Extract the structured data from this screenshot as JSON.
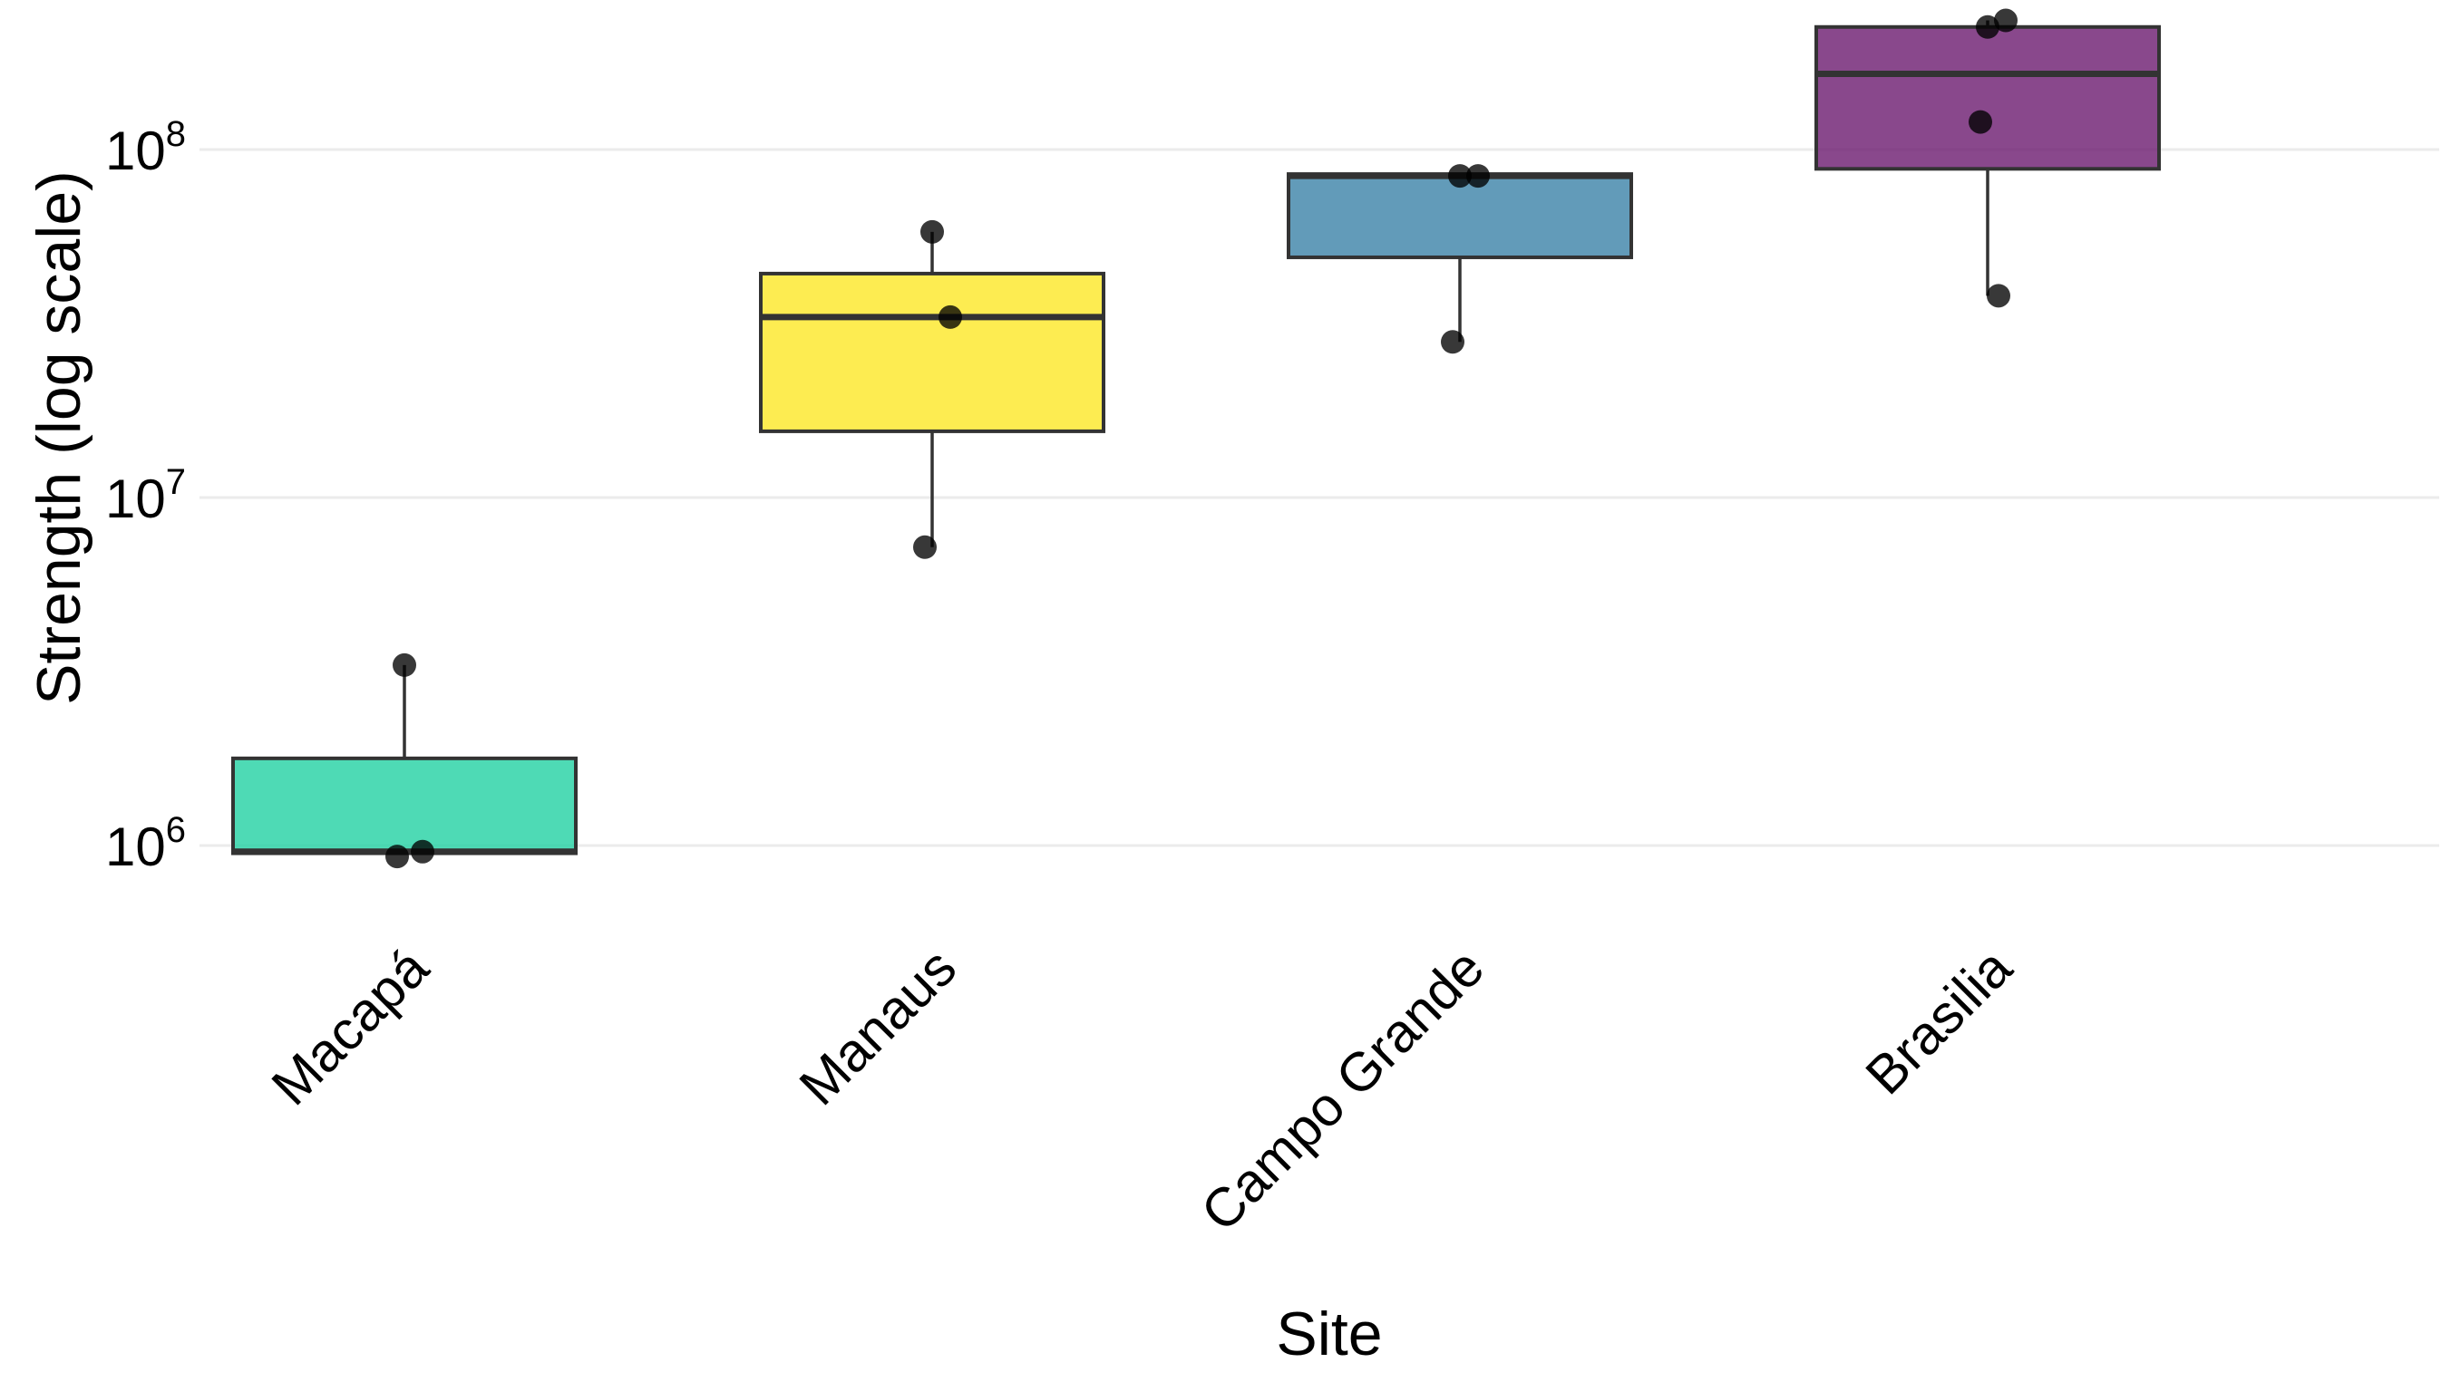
{
  "chart_data": {
    "type": "box",
    "title": "",
    "xlabel": "Site",
    "ylabel": "Strength (log scale)",
    "y_scale": "log10",
    "ylim": [
      700000,
      300000000
    ],
    "y_ticks": [
      {
        "value": 1000000,
        "base": "10",
        "exp": "6"
      },
      {
        "value": 10000000,
        "base": "10",
        "exp": "7"
      },
      {
        "value": 100000000,
        "base": "10",
        "exp": "8"
      }
    ],
    "grid": true,
    "legend": "none",
    "categories": [
      "Macapá",
      "Manaus",
      "Campo Grande",
      "Brasilia"
    ],
    "boxes": [
      {
        "category": "Macapá",
        "color": "#22d1a3",
        "q1": 950000,
        "median": 960000,
        "q3": 1780000,
        "whisker_low": 950000,
        "whisker_high": 3300000,
        "points": [
          3300000,
          960000,
          930000
        ]
      },
      {
        "category": "Manaus",
        "color": "#fde725",
        "q1": 15500000,
        "median": 33000000,
        "q3": 44000000,
        "whisker_low": 7200000,
        "whisker_high": 58000000,
        "points": [
          58000000,
          33000000,
          7200000
        ]
      },
      {
        "category": "Campo Grande",
        "color": "#3b82a8",
        "q1": 49000000,
        "median": 84000000,
        "q3": 85000000,
        "whisker_low": 28000000,
        "whisker_high": 85000000,
        "points": [
          84000000,
          84000000,
          28000000
        ]
      },
      {
        "category": "Brasilia",
        "color": "#6b1a6f",
        "q1": 88000000,
        "median": 165000000,
        "q3": 225000000,
        "whisker_low": 38000000,
        "whisker_high": 235000000,
        "points": [
          225000000,
          235000000,
          120000000,
          38000000
        ]
      }
    ]
  }
}
